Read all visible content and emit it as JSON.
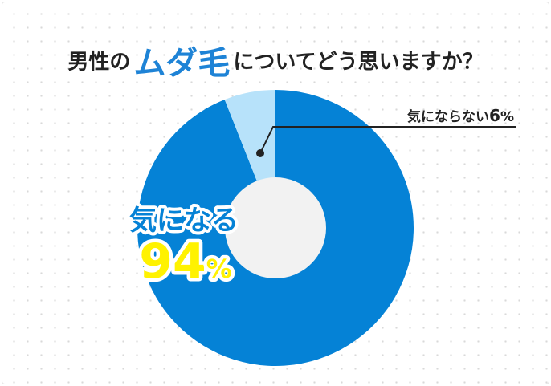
{
  "title": {
    "prefix": "男性の",
    "highlight": "ムダ毛",
    "suffix": "についてどう思いますか？"
  },
  "colors": {
    "primary": "#0582d6",
    "secondary": "#b7e2fa",
    "hole": "#f2f2f2",
    "accent_yellow": "#fff200",
    "text": "#222222"
  },
  "chart_data": {
    "type": "pie",
    "categories": [
      "気になる",
      "気にならない"
    ],
    "values": [
      94,
      6
    ],
    "unit": "%",
    "labels": [
      {
        "text": "気になる",
        "value": "94",
        "unit": "%"
      },
      {
        "text": "気にならない",
        "value": "6",
        "unit": "%"
      }
    ],
    "legend": "none"
  }
}
